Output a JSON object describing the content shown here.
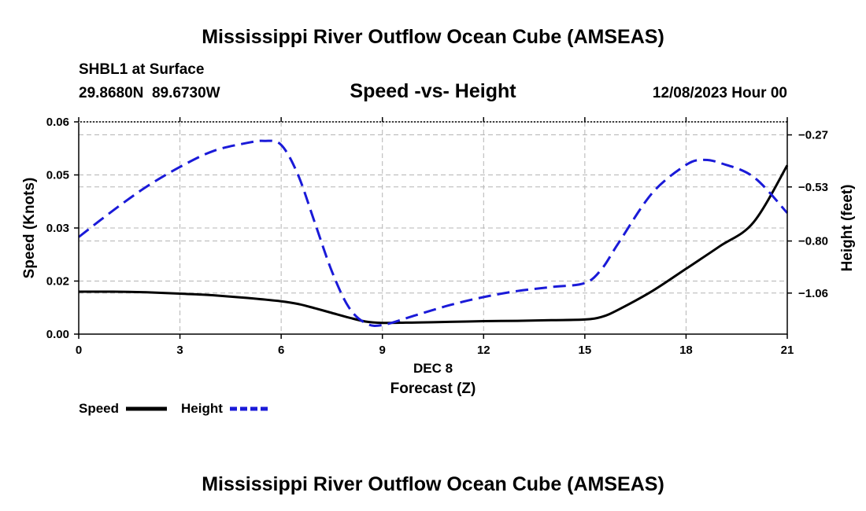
{
  "page": {
    "title_top": "Mississippi River Outflow Ocean Cube (AMSEAS)",
    "title_bottom": "Mississippi River Outflow Ocean Cube (AMSEAS)",
    "station": "SHBL1 at Surface",
    "coords": "29.8680N  89.6730W",
    "subtitle": "Speed -vs- Height",
    "datetime": "12/08/2023 Hour 00"
  },
  "chart_data": {
    "type": "line",
    "xlabel_date": "DEC 8",
    "xlabel": "Forecast (Z)",
    "ylabel_left": "Speed (Knots)",
    "ylabel_right": "Height (feet)",
    "x_ticks": [
      "0",
      "3",
      "6",
      "9",
      "12",
      "15",
      "18",
      "21"
    ],
    "x_range": [
      0,
      21
    ],
    "y_left_ticks": [
      "0.00",
      "0.02",
      "0.03",
      "0.05",
      "0.06"
    ],
    "y_left_tick_values": [
      0.0,
      0.016,
      0.032,
      0.048,
      0.064
    ],
    "y_left_range": [
      0.0,
      0.064
    ],
    "y_right_ticks": [
      "−1.06",
      "−0.80",
      "−0.53",
      "−0.27"
    ],
    "y_right_tick_values": [
      -1.06,
      -0.8,
      -0.53,
      -0.27
    ],
    "y_right_range": [
      -1.265,
      -0.205
    ],
    "grid": true,
    "series": [
      {
        "name": "Speed",
        "axis": "left",
        "color": "#000000",
        "style": "solid",
        "x": [
          0,
          1,
          2,
          3,
          4,
          5,
          6,
          6.5,
          7,
          7.5,
          8,
          8.5,
          9,
          10,
          11,
          12,
          13,
          14,
          15,
          15.5,
          16,
          17,
          18,
          19,
          20,
          21
        ],
        "values": [
          0.0128,
          0.0128,
          0.0126,
          0.0122,
          0.0117,
          0.0109,
          0.0099,
          0.0091,
          0.0078,
          0.0064,
          0.005,
          0.0038,
          0.0034,
          0.0035,
          0.0037,
          0.0039,
          0.004,
          0.0042,
          0.0044,
          0.0052,
          0.0074,
          0.013,
          0.0197,
          0.0265,
          0.0337,
          0.0509
        ]
      },
      {
        "name": "Height",
        "axis": "right",
        "color": "#1a1ad8",
        "style": "dashed",
        "x": [
          0,
          1,
          2,
          3,
          4,
          5,
          5.5,
          6,
          6.5,
          7,
          7.5,
          8,
          8.5,
          9,
          10,
          11,
          12,
          13,
          14,
          15,
          15.5,
          16,
          17,
          18,
          18.5,
          19,
          20,
          21
        ],
        "values": [
          -0.78,
          -0.65,
          -0.53,
          -0.43,
          -0.35,
          -0.31,
          -0.3,
          -0.32,
          -0.47,
          -0.71,
          -0.95,
          -1.13,
          -1.21,
          -1.22,
          -1.17,
          -1.12,
          -1.08,
          -1.05,
          -1.03,
          -1.01,
          -0.94,
          -0.81,
          -0.56,
          -0.42,
          -0.395,
          -0.41,
          -0.48,
          -0.66
        ]
      }
    ],
    "legend": {
      "position": "bottom-left",
      "items": [
        "Speed",
        "Height"
      ]
    }
  }
}
